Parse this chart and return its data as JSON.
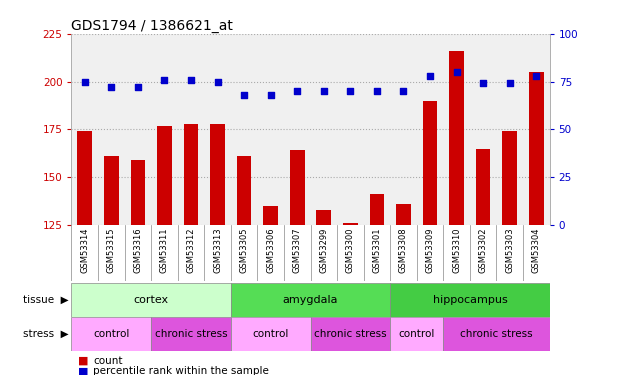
{
  "title": "GDS1794 / 1386621_at",
  "samples": [
    "GSM53314",
    "GSM53315",
    "GSM53316",
    "GSM53311",
    "GSM53312",
    "GSM53313",
    "GSM53305",
    "GSM53306",
    "GSM53307",
    "GSM53299",
    "GSM53300",
    "GSM53301",
    "GSM53308",
    "GSM53309",
    "GSM53310",
    "GSM53302",
    "GSM53303",
    "GSM53304"
  ],
  "counts": [
    174,
    161,
    159,
    177,
    178,
    178,
    161,
    135,
    164,
    133,
    126,
    141,
    136,
    190,
    216,
    165,
    174,
    205
  ],
  "percentiles": [
    75,
    72,
    72,
    76,
    76,
    75,
    68,
    68,
    70,
    70,
    70,
    70,
    70,
    78,
    80,
    74,
    74,
    78
  ],
  "ylim_left": [
    125,
    225
  ],
  "ylim_right": [
    0,
    100
  ],
  "yticks_left": [
    125,
    150,
    175,
    200,
    225
  ],
  "yticks_right": [
    0,
    25,
    50,
    75,
    100
  ],
  "bar_color": "#cc0000",
  "dot_color": "#0000cc",
  "grid_color": "#aaaaaa",
  "tissue_groups": [
    {
      "label": "cortex",
      "start": 0,
      "end": 5,
      "color": "#ccffcc"
    },
    {
      "label": "amygdala",
      "start": 6,
      "end": 11,
      "color": "#55dd55"
    },
    {
      "label": "hippocampus",
      "start": 12,
      "end": 17,
      "color": "#44cc44"
    }
  ],
  "stress_groups": [
    {
      "label": "control",
      "start": 0,
      "end": 2,
      "color": "#ffaaff"
    },
    {
      "label": "chronic stress",
      "start": 3,
      "end": 5,
      "color": "#dd55dd"
    },
    {
      "label": "control",
      "start": 6,
      "end": 8,
      "color": "#ffaaff"
    },
    {
      "label": "chronic stress",
      "start": 9,
      "end": 11,
      "color": "#dd55dd"
    },
    {
      "label": "control",
      "start": 12,
      "end": 13,
      "color": "#ffaaff"
    },
    {
      "label": "chronic stress",
      "start": 14,
      "end": 17,
      "color": "#dd55dd"
    }
  ],
  "label_count": "count",
  "label_percentile": "percentile rank within the sample",
  "tick_label_color": "#cc0000",
  "right_tick_color": "#0000cc",
  "plot_bg_color": "#f0f0f0",
  "title_fontsize": 10,
  "tick_fontsize": 7.5,
  "bar_width": 0.55
}
